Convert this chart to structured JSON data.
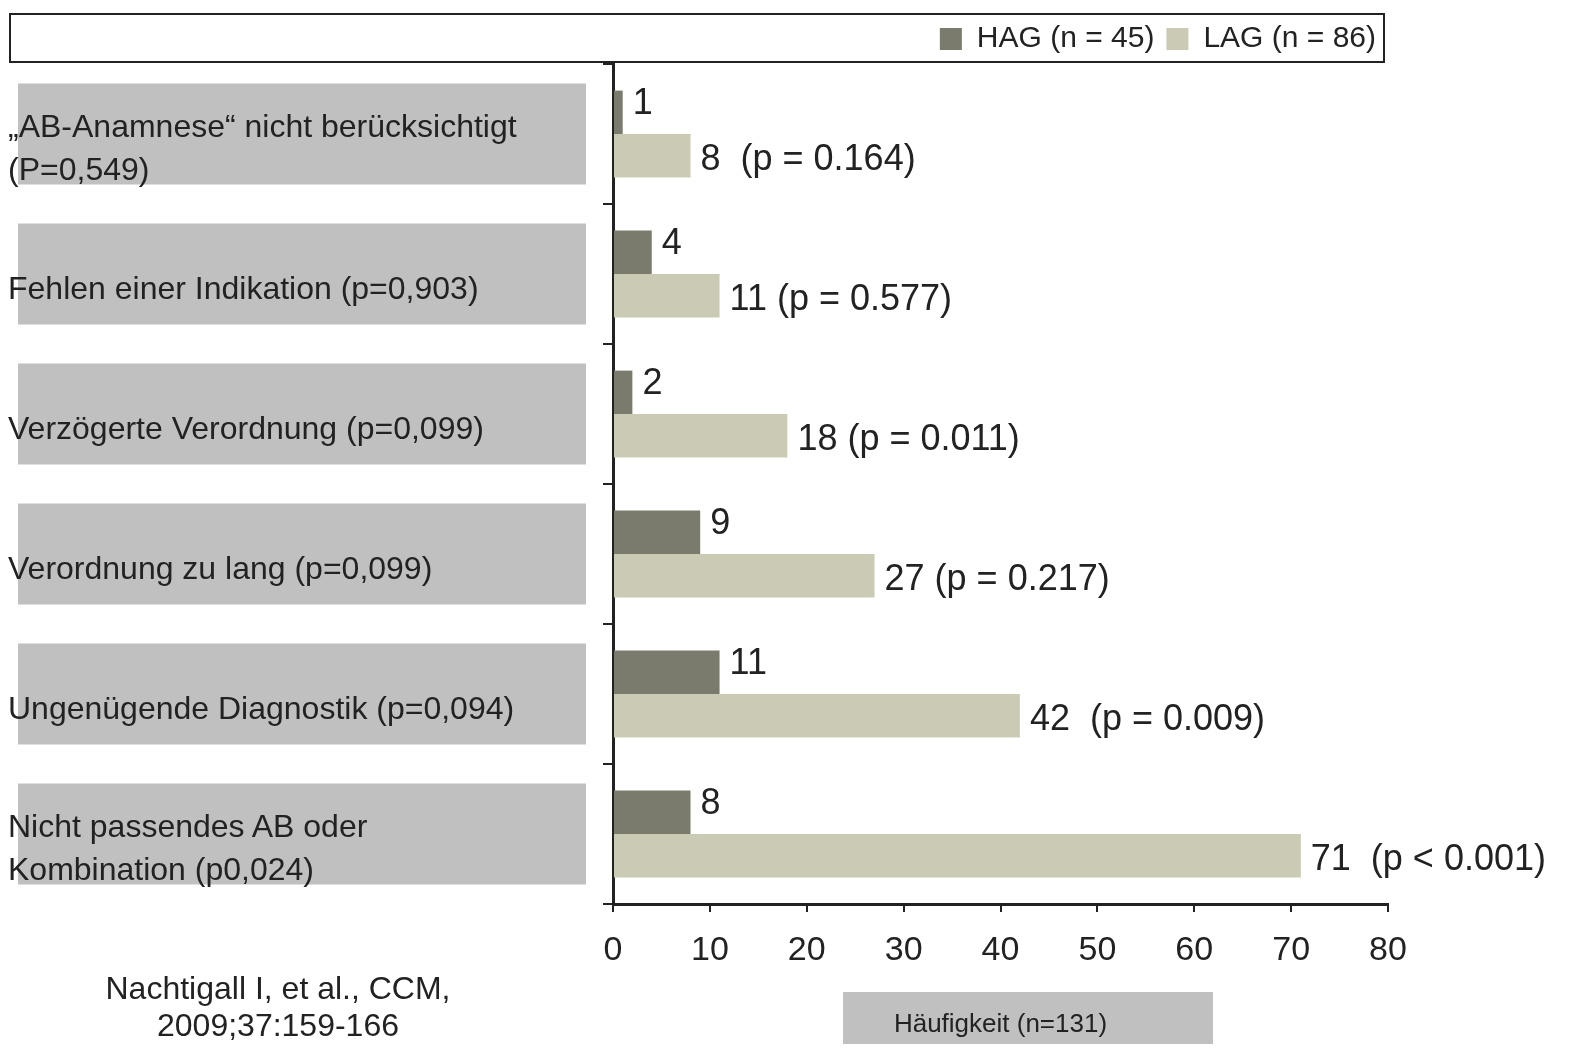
{
  "chart_data": {
    "type": "bar",
    "orientation": "horizontal",
    "categories": [
      "„AB-Anamnese“ nicht berücksichtigt (P=0,549)",
      "Fehlen einer Indikation (p=0,903)",
      "Verzögerte Verordnung (p=0,099)",
      "Verordnung zu lang (p=0,099)",
      "Ungenügende Diagnostik (p=0,094)",
      "Nicht passendes AB oder Kombination (p0,024)"
    ],
    "series": [
      {
        "name": "HAG (n = 45)",
        "color": "#7a7b6d",
        "values": [
          1,
          4,
          2,
          9,
          11,
          8
        ],
        "value_labels": [
          "1",
          "4",
          "2",
          "9",
          "11",
          "8"
        ]
      },
      {
        "name": "LAG (n = 86)",
        "color": "#cbcbb5",
        "values": [
          8,
          11,
          18,
          27,
          42,
          71
        ],
        "value_labels": [
          "8  (p = 0.164)",
          "11 (p = 0.577)",
          "18 (p = 0.011)",
          "27 (p = 0.217)",
          "42  (p = 0.009)",
          "71  (p < 0.001)"
        ]
      }
    ],
    "xlabel": "Häufigkeit (n=131)",
    "xlim": [
      0,
      80
    ],
    "xticks": [
      0,
      10,
      20,
      30,
      40,
      50,
      60,
      70,
      80
    ],
    "grid": false,
    "legend": "top right",
    "annotations": [
      "Nachtigall I, et al., CCM, 2009;37:159-166"
    ]
  }
}
